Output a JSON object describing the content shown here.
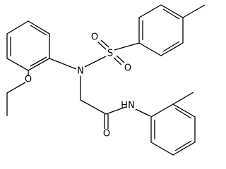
{
  "atoms": [
    {
      "label": "O"
    },
    {
      "label": "N"
    },
    {
      "label": "S"
    },
    {
      "label": "O"
    },
    {
      "label": "O"
    },
    {
      "label": "O"
    },
    {
      "label": "H"
    },
    {
      "label": "N"
    }
  ]
}
